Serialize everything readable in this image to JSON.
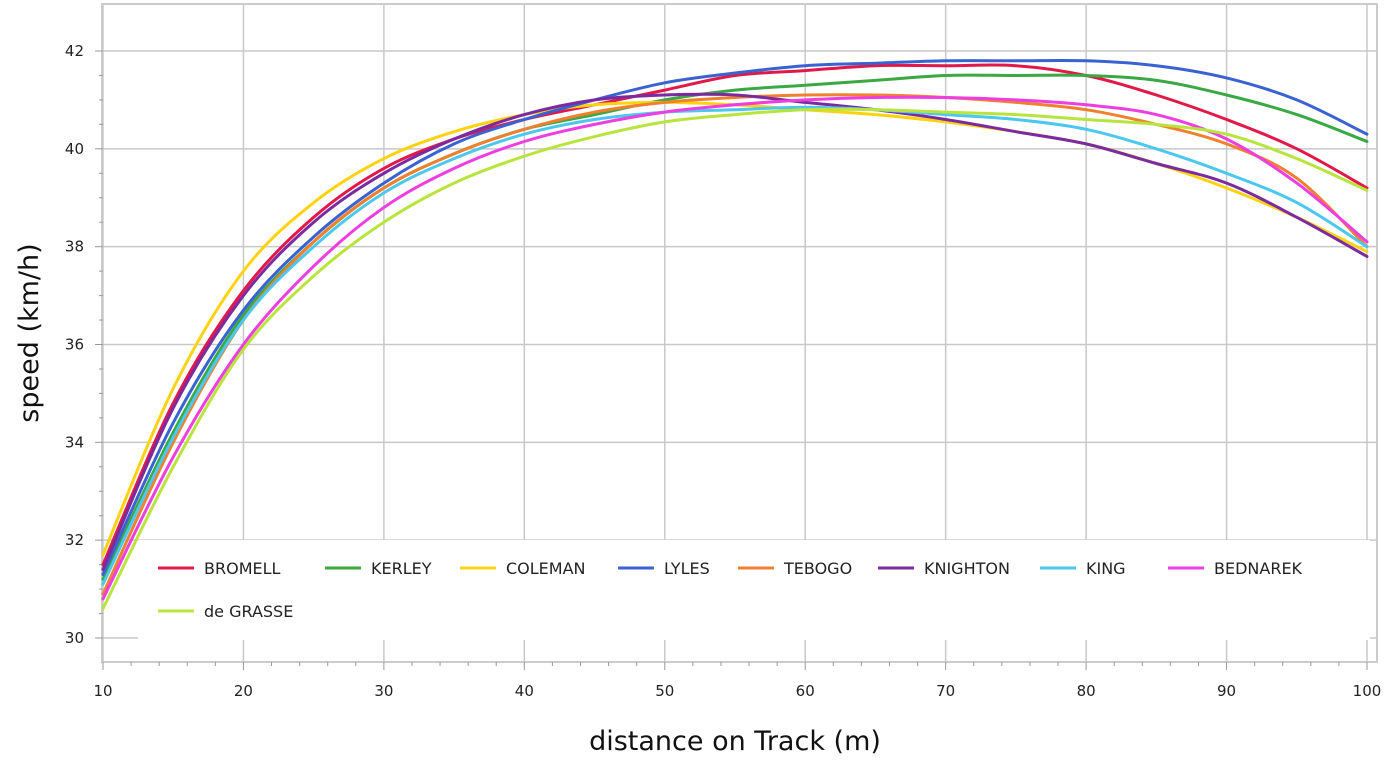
{
  "chart_data": {
    "type": "line",
    "xlabel": "distance on Track (m)",
    "ylabel": "speed (km/h)",
    "xlim": [
      10,
      100
    ],
    "ylim": [
      29.8,
      42.9
    ],
    "x_ticks": [
      10,
      20,
      30,
      40,
      50,
      60,
      70,
      80,
      90,
      100
    ],
    "y_ticks": [
      30,
      32,
      34,
      36,
      38,
      40,
      42
    ],
    "grid": true,
    "legend_position": "bottom-left inside",
    "x": [
      10,
      15,
      20,
      25,
      30,
      35,
      40,
      45,
      50,
      55,
      60,
      65,
      70,
      75,
      80,
      85,
      90,
      95,
      100
    ],
    "series": [
      {
        "name": "BROMELL",
        "color": "#e0194a",
        "values": [
          31.5,
          34.8,
          37.1,
          38.6,
          39.6,
          40.2,
          40.6,
          40.9,
          41.2,
          41.5,
          41.6,
          41.7,
          41.7,
          41.7,
          41.5,
          41.1,
          40.6,
          40.0,
          39.2
        ]
      },
      {
        "name": "KERLEY",
        "color": "#3aa843",
        "values": [
          31.2,
          34.2,
          36.6,
          38.1,
          39.2,
          39.9,
          40.4,
          40.7,
          41.0,
          41.2,
          41.3,
          41.4,
          41.5,
          41.5,
          41.5,
          41.4,
          41.1,
          40.7,
          40.15
        ]
      },
      {
        "name": "COLEMAN",
        "color": "#fdd311",
        "values": [
          31.7,
          35.1,
          37.5,
          38.9,
          39.8,
          40.35,
          40.7,
          40.9,
          40.95,
          40.9,
          40.8,
          40.7,
          40.55,
          40.35,
          40.1,
          39.7,
          39.2,
          38.6,
          37.9
        ]
      },
      {
        "name": "LYLES",
        "color": "#3a63d1",
        "values": [
          31.3,
          34.4,
          36.7,
          38.2,
          39.3,
          40.1,
          40.6,
          41.0,
          41.35,
          41.55,
          41.7,
          41.75,
          41.8,
          41.8,
          41.8,
          41.7,
          41.45,
          41.0,
          40.3
        ]
      },
      {
        "name": "TEBOGO",
        "color": "#f08030",
        "values": [
          30.9,
          34.0,
          36.5,
          38.1,
          39.2,
          39.9,
          40.4,
          40.75,
          40.95,
          41.05,
          41.1,
          41.1,
          41.05,
          40.95,
          40.8,
          40.5,
          40.1,
          39.4,
          38.0
        ]
      },
      {
        "name": "KNIGHTON",
        "color": "#7b2aa0",
        "values": [
          31.4,
          34.7,
          37.0,
          38.5,
          39.5,
          40.2,
          40.7,
          41.0,
          41.1,
          41.1,
          40.95,
          40.8,
          40.6,
          40.35,
          40.1,
          39.7,
          39.3,
          38.6,
          37.8
        ]
      },
      {
        "name": "KING",
        "color": "#4cc7ee",
        "values": [
          31.1,
          34.1,
          36.5,
          38.0,
          39.1,
          39.8,
          40.3,
          40.6,
          40.75,
          40.8,
          40.85,
          40.8,
          40.7,
          40.6,
          40.4,
          40.0,
          39.5,
          38.9,
          38.0
        ]
      },
      {
        "name": "BEDNAREK",
        "color": "#ee3ee0",
        "values": [
          30.8,
          33.7,
          36.0,
          37.6,
          38.8,
          39.6,
          40.15,
          40.5,
          40.75,
          40.9,
          41.0,
          41.05,
          41.05,
          41.0,
          40.9,
          40.7,
          40.2,
          39.3,
          38.1
        ]
      },
      {
        "name": "de GRASSE",
        "color": "#b9e43e",
        "values": [
          30.6,
          33.5,
          35.9,
          37.4,
          38.5,
          39.3,
          39.85,
          40.25,
          40.55,
          40.7,
          40.8,
          40.8,
          40.75,
          40.7,
          40.6,
          40.5,
          40.3,
          39.8,
          39.15
        ]
      }
    ]
  }
}
